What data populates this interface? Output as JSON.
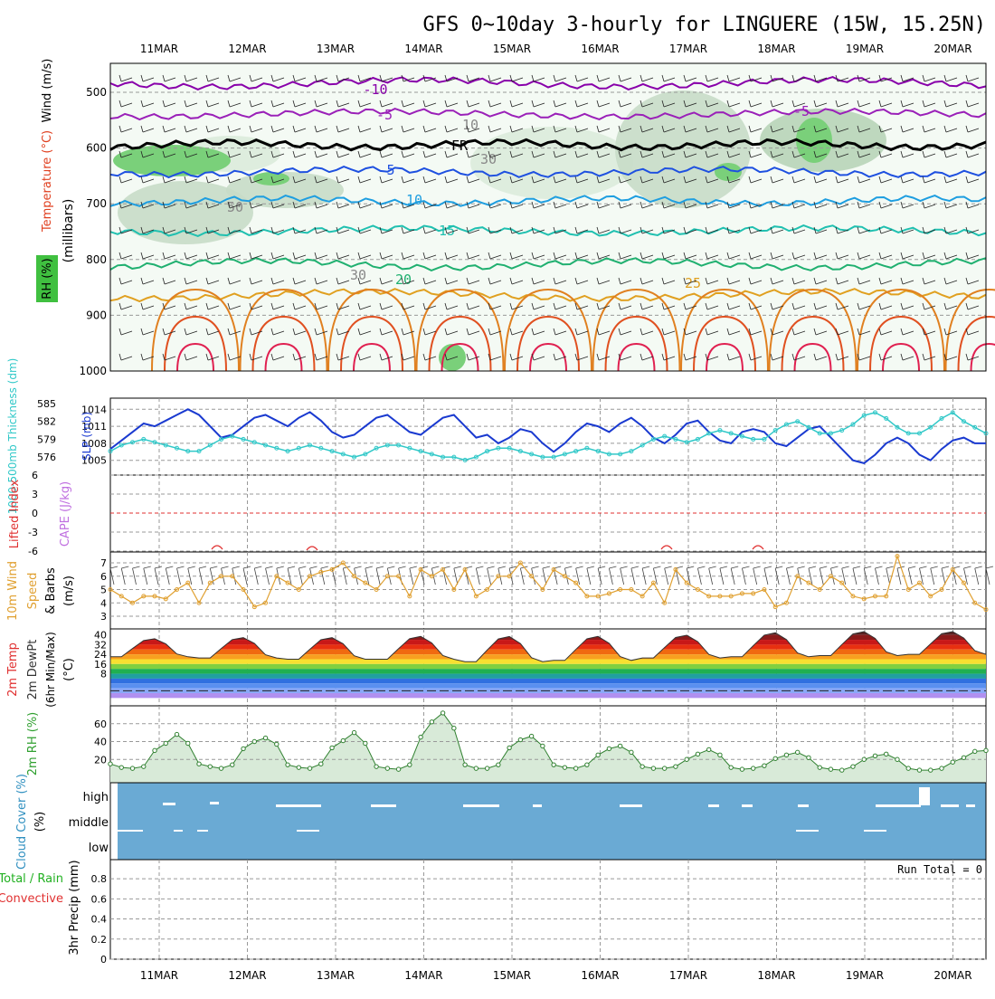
{
  "title": "GFS 0~10day 3-hourly for LINGUERE (15W, 15.25N)",
  "dates": [
    "11MAR",
    "12MAR",
    "13MAR",
    "14MAR",
    "15MAR",
    "16MAR",
    "17MAR",
    "18MAR",
    "19MAR",
    "20MAR"
  ],
  "n_steps": 80,
  "panels": {
    "upper": {
      "ylabels": [
        "Wind (m/s)",
        "Temperature (°C)",
        "RH (%)",
        "(millibars)"
      ],
      "levels": [
        500,
        600,
        700,
        800,
        900,
        1000
      ],
      "contour_labels": [
        "-10",
        "-5",
        "FR",
        "5",
        "10",
        "15",
        "20",
        "25",
        "10",
        "30",
        "50",
        "30",
        "-5"
      ],
      "colors": {
        "m10": "#8800aa",
        "m5": "#9a20b8",
        "fr": "#000000",
        "p5": "#1e50e0",
        "p10": "#1e9ee0",
        "p15": "#20c0b0",
        "p20": "#20b070",
        "p25": "#e0a020",
        "warm1": "#e08020",
        "warm2": "#e05020",
        "warm3": "#e02050",
        "rh_fill": "#7ad07a"
      }
    },
    "slp": {
      "ylabel_left": "1000-500mb Thickness (dm)",
      "ylabel_right": "SLP (mb)",
      "thickness_ticks": [
        "576",
        "579",
        "582",
        "585"
      ],
      "slp_ticks": [
        "1005",
        "1008",
        "1011",
        "1014"
      ],
      "slp_color": "#1a3ad0",
      "thickness_color": "#30c8c8",
      "slp": [
        1007,
        1008.5,
        1010,
        1011.5,
        1011,
        1012,
        1013,
        1014,
        1013,
        1011,
        1009,
        1009.5,
        1011,
        1012.5,
        1013,
        1012,
        1011,
        1012.5,
        1013.5,
        1012,
        1010,
        1009,
        1009.5,
        1011,
        1012.5,
        1013,
        1011.5,
        1010,
        1009.5,
        1011,
        1012.5,
        1013,
        1011,
        1009,
        1009.5,
        1008,
        1009,
        1010.5,
        1010,
        1008,
        1006.5,
        1008,
        1010,
        1011.5,
        1011,
        1010,
        1011.5,
        1012.5,
        1011,
        1009,
        1008,
        1009.5,
        1011.5,
        1012,
        1010,
        1008.5,
        1008,
        1010,
        1010.5,
        1010,
        1008,
        1007.5,
        1009,
        1010.5,
        1011,
        1009,
        1007,
        1005,
        1004.5,
        1006,
        1008,
        1009,
        1008,
        1006,
        1005,
        1007,
        1008.5,
        1009,
        1008,
        1008
      ],
      "thickness": [
        577,
        578,
        578.5,
        579,
        578.5,
        578,
        577.5,
        577,
        577,
        578,
        579,
        579.5,
        579,
        578.5,
        578,
        577.5,
        577,
        577.5,
        578,
        577.5,
        577,
        576.5,
        576,
        576.5,
        577.5,
        578,
        578,
        577.5,
        577,
        576.5,
        576,
        576,
        575.5,
        576,
        577,
        577.5,
        577.5,
        577,
        576.5,
        576,
        576,
        576.5,
        577,
        577.5,
        577,
        576.5,
        576.5,
        577,
        578,
        579,
        579.5,
        579,
        578.5,
        579,
        580,
        580.5,
        580,
        579.5,
        579,
        579,
        580.5,
        581.5,
        582,
        581,
        580,
        580,
        580.5,
        581.5,
        583,
        583.5,
        582.5,
        581,
        580,
        580,
        581,
        582.5,
        583.5,
        582,
        581,
        580
      ]
    },
    "cape": {
      "ylabel_left": "Lifted Index",
      "ylabel_right": "CAPE (J/kg)",
      "li_ticks": [
        "6",
        "3",
        "0",
        "-3",
        "-6"
      ],
      "li_color": "#e03030",
      "cape_color": "#c070e0"
    },
    "wind10": {
      "ylabel": "10m Wind Speed & Barbs (m/s)",
      "ticks": [
        "3",
        "4",
        "5",
        "6",
        "7"
      ],
      "color": "#e0a030",
      "speed": [
        5.0,
        4.5,
        4.0,
        4.5,
        4.5,
        4.3,
        5.0,
        5.5,
        4.0,
        5.5,
        6.0,
        6.0,
        5.0,
        3.7,
        4.0,
        6.0,
        5.5,
        5.0,
        6.0,
        6.3,
        6.5,
        7.0,
        6.0,
        5.5,
        5.0,
        6.0,
        6.0,
        4.5,
        6.5,
        6.0,
        6.5,
        5.0,
        6.5,
        4.5,
        5.0,
        6.0,
        6.0,
        7.0,
        6.0,
        5.0,
        6.5,
        6.0,
        5.5,
        4.5,
        4.5,
        4.7,
        5.0,
        5.0,
        4.5,
        5.5,
        4.0,
        6.5,
        5.5,
        5.0,
        4.5,
        4.5,
        4.5,
        4.7,
        4.7,
        5.0,
        3.7,
        4.0,
        6.0,
        5.5,
        5.0,
        6.0,
        5.5,
        4.5,
        4.3,
        4.5,
        4.5,
        7.5,
        5.0,
        5.5,
        4.5,
        5.0,
        6.5,
        5.5,
        4.0,
        3.5
      ]
    },
    "temp": {
      "ylabel": "2m Temp 2m DewPt (6hr Min/Max) (°C)",
      "ticks": [
        "8",
        "16",
        "24",
        "32",
        "40"
      ],
      "tmax": [
        37,
        38,
        38,
        39,
        39,
        39,
        40,
        42,
        43,
        43
      ],
      "tmin": [
        22,
        21,
        20,
        20,
        18,
        19,
        21,
        22,
        23,
        24
      ],
      "dewpt_ticks": [
        "-8",
        "0"
      ],
      "bands": [
        "#5a2020",
        "#8b1a1a",
        "#c81818",
        "#e83010",
        "#f06a10",
        "#f8a020",
        "#f8e030",
        "#80d040",
        "#20b050",
        "#20a0a0",
        "#3070e0",
        "#5a90f0",
        "#8aa8f8",
        "#b090f0"
      ]
    },
    "rh2m": {
      "ylabel": "2m RH (%)",
      "ticks": [
        "20",
        "40",
        "60"
      ],
      "color": "#308030",
      "values": [
        15,
        11,
        10,
        12,
        30,
        38,
        48,
        38,
        15,
        12,
        10,
        14,
        32,
        40,
        44,
        37,
        14,
        11,
        10,
        15,
        33,
        41,
        50,
        38,
        12,
        10,
        9,
        14,
        45,
        62,
        72,
        55,
        14,
        10,
        10,
        14,
        33,
        42,
        46,
        35,
        14,
        11,
        10,
        14,
        25,
        32,
        35,
        28,
        12,
        10,
        10,
        12,
        20,
        26,
        31,
        25,
        11,
        9,
        10,
        13,
        21,
        25,
        28,
        22,
        11,
        9,
        8,
        12,
        20,
        24,
        26,
        20,
        10,
        8,
        8,
        10,
        17,
        22,
        29,
        30
      ]
    },
    "cloud": {
      "ylabel": "Cloud Cover (%)",
      "levels": [
        "high",
        "middle",
        "low"
      ],
      "bg": "#6aaad4"
    },
    "precip": {
      "ylabel_left": "Total / Rain",
      "ylabel_left2": "Convective",
      "ylabel_right": "3hr Precip (mm)",
      "ticks": [
        "0",
        "0.2",
        "0.4",
        "0.6",
        "0.8"
      ],
      "run_total": "Run Total = 0",
      "total_color": "#20b020",
      "conv_color": "#e03030"
    }
  }
}
